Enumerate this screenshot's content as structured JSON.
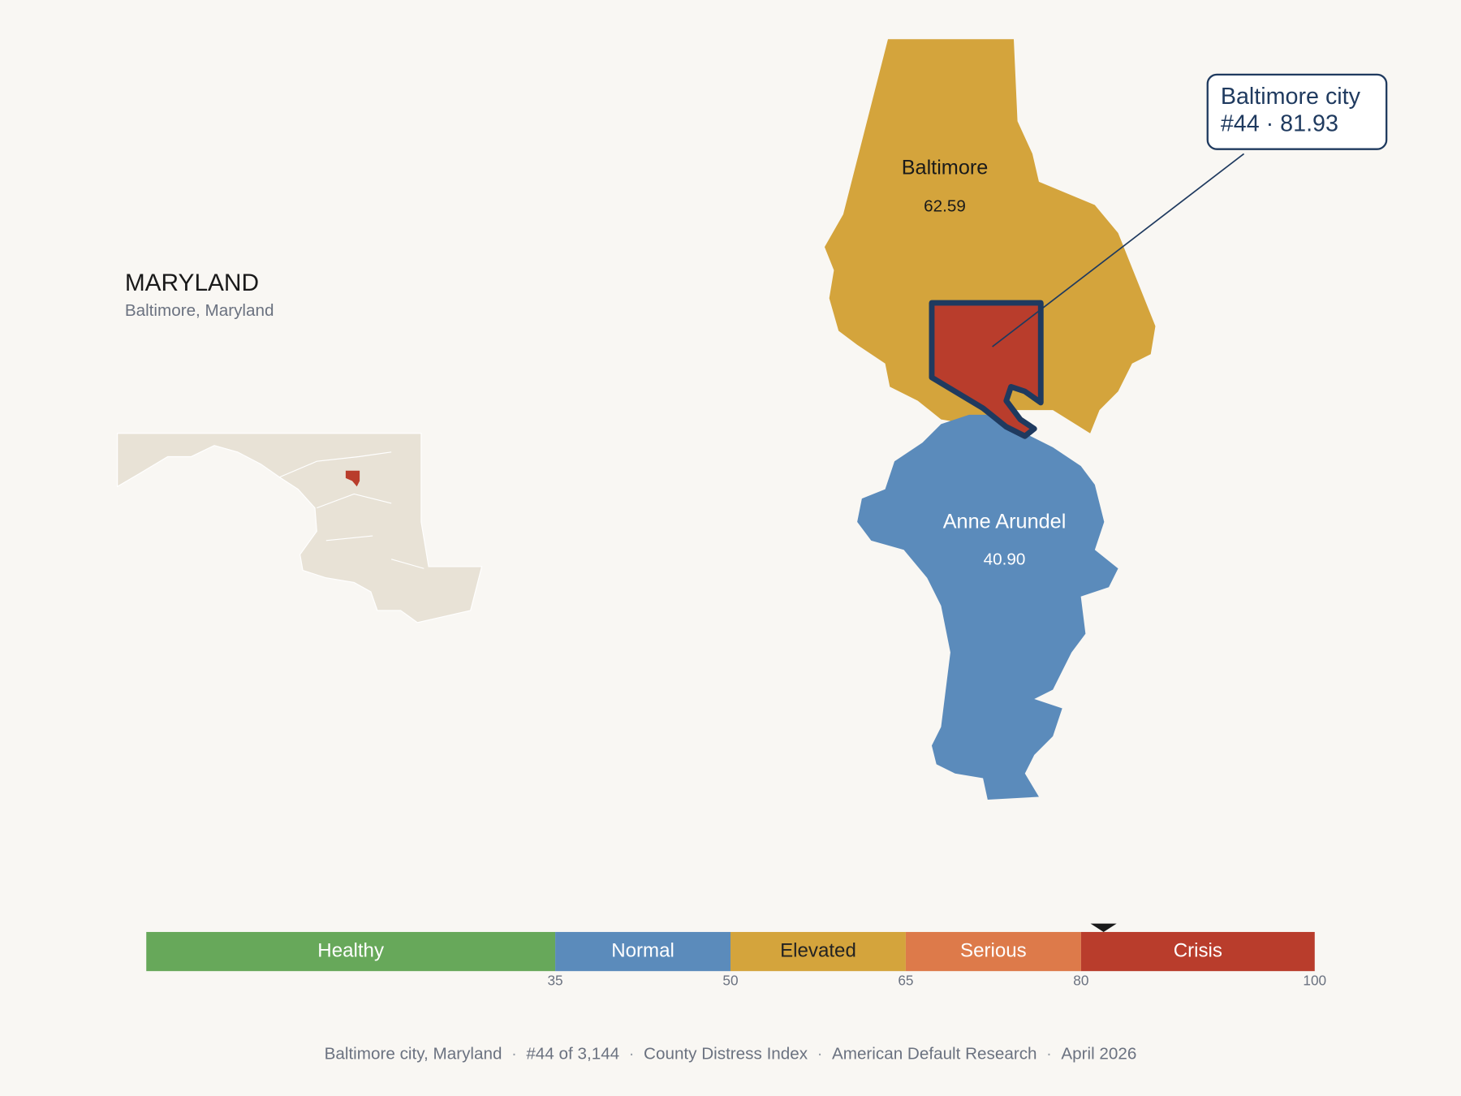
{
  "header": {
    "title": "MARYLAND",
    "subtitle": "Baltimore, Maryland"
  },
  "counties": [
    {
      "name": "Baltimore",
      "value": 62.59,
      "color": "#d4a43c"
    },
    {
      "name": "Anne Arundel",
      "value": 40.9,
      "value_label": "40.90",
      "color": "#5b8bbb"
    }
  ],
  "highlight": {
    "name": "Baltimore city",
    "line2": "#44 · 81.93",
    "value": 81.93,
    "color": "#b93d2c"
  },
  "scale": {
    "xlim": [
      0,
      100
    ],
    "xticks": [
      35,
      50,
      65,
      80,
      100
    ],
    "bands": [
      {
        "label": "Healthy",
        "to": 35,
        "color": "#67a85a",
        "label_color": "#ffffff"
      },
      {
        "label": "Normal",
        "to": 50,
        "color": "#5b8bbb",
        "label_color": "#ffffff"
      },
      {
        "label": "Elevated",
        "to": 65,
        "color": "#d4a43c",
        "label_color": "#222222"
      },
      {
        "label": "Serious",
        "to": 80,
        "color": "#dd7a4a",
        "label_color": "#ffffff"
      },
      {
        "label": "Crisis",
        "to": 100,
        "color": "#b93d2c",
        "label_color": "#ffffff"
      }
    ]
  },
  "footer": {
    "separator": "·",
    "items": [
      "Baltimore city, Maryland",
      "#44 of 3,144",
      "County Distress Index",
      "American Default Research",
      "April 2026"
    ]
  }
}
